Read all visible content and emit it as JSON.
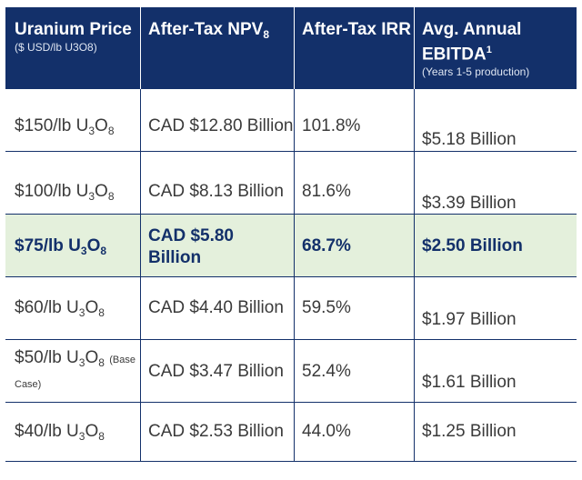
{
  "headers": [
    {
      "title": "Uranium Price",
      "subtitle": "($ USD/lb U3O8)"
    },
    {
      "title": "After-Tax NPV",
      "title_sub": "8"
    },
    {
      "title": "After-Tax IRR"
    },
    {
      "title": "Avg. Annual",
      "title2": "EBITDA",
      "title2_sup": "1",
      "subtitle": "(Years 1-5 production)"
    }
  ],
  "rows": [
    {
      "price": "$150/lb U",
      "npv": "CAD $12.80 Billion",
      "irr": "101.8%",
      "ebitda": "$5.18 Billion"
    },
    {
      "price": "$100/lb U",
      "npv": "CAD $8.13 Billion",
      "irr": "81.6%",
      "ebitda": "$3.39 Billion"
    },
    {
      "price": "$75/lb U",
      "npv_line1": "CAD $5.80",
      "npv_line2": "Billion",
      "irr": "68.7%",
      "ebitda": "$2.50 Billion"
    },
    {
      "price": "$60/lb U",
      "npv": "CAD $4.40 Billion",
      "irr": "59.5%",
      "ebitda": "$1.97 Billion"
    },
    {
      "price": "$50/lb U",
      "note_a": "(Base",
      "note_b": "Case)",
      "npv": "CAD $3.47 Billion",
      "irr": "52.4%",
      "ebitda": "$1.61 Billion"
    },
    {
      "price": "$40/lb U",
      "npv": "CAD $2.53 Billion",
      "irr": "44.0%",
      "ebitda": "$1.25 Billion"
    }
  ],
  "sub3": "3",
  "o": "O",
  "sub8": "8"
}
